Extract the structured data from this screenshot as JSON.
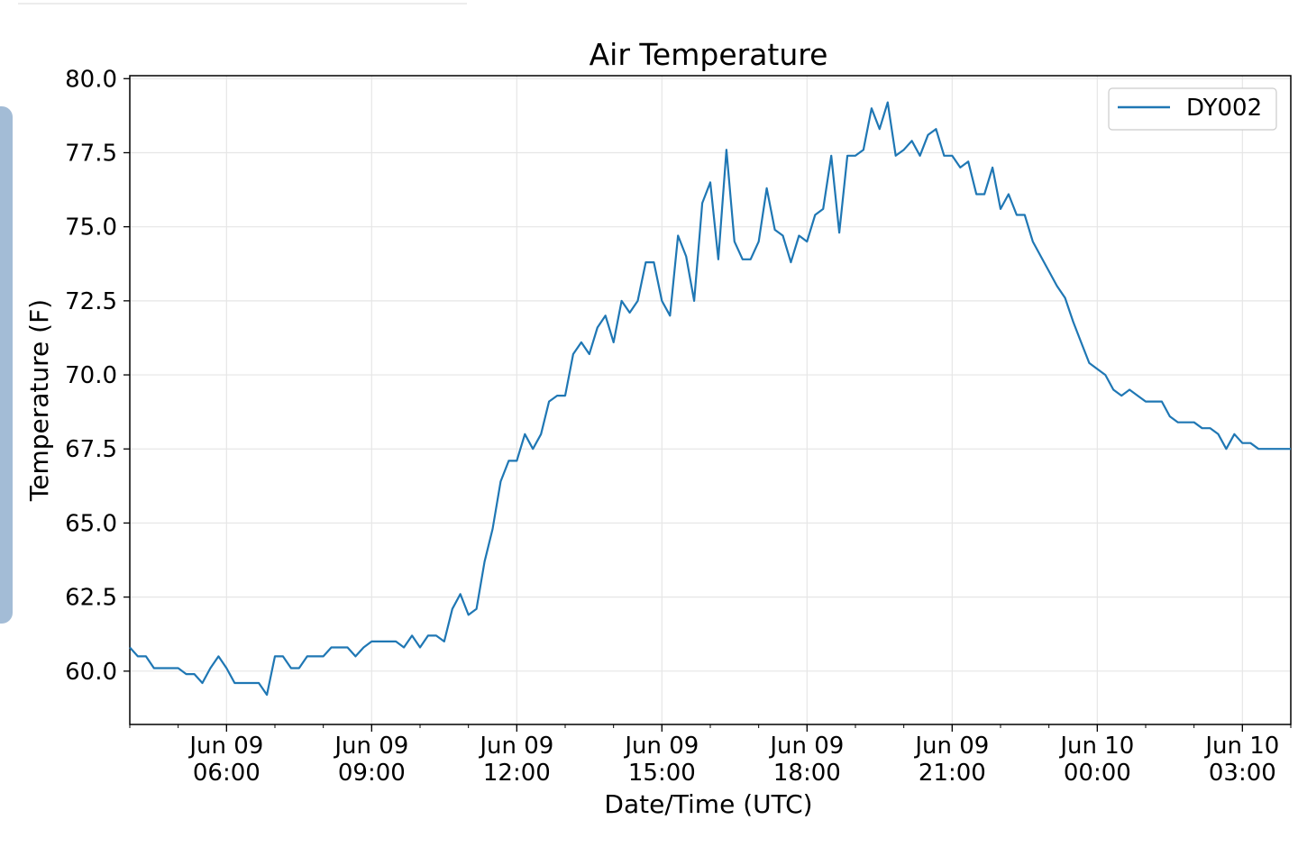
{
  "chart_data": {
    "type": "line",
    "title": "Air Temperature",
    "xlabel": "Date/Time (UTC)",
    "ylabel": "Temperature (F)",
    "ylim": [
      58.2,
      80.1
    ],
    "yticks": [
      60.0,
      62.5,
      65.0,
      67.5,
      70.0,
      72.5,
      75.0,
      77.5,
      80.0
    ],
    "ytick_labels": [
      "60.0",
      "62.5",
      "65.0",
      "67.5",
      "70.0",
      "72.5",
      "75.0",
      "77.5",
      "80.0"
    ],
    "xlim": [
      "2024-06-09 04:00",
      "2024-06-10 04:00"
    ],
    "xticks": [
      {
        "time": "2024-06-09 06:00",
        "line1": "Jun 09",
        "line2": "06:00"
      },
      {
        "time": "2024-06-09 09:00",
        "line1": "Jun 09",
        "line2": "09:00"
      },
      {
        "time": "2024-06-09 12:00",
        "line1": "Jun 09",
        "line2": "12:00"
      },
      {
        "time": "2024-06-09 15:00",
        "line1": "Jun 09",
        "line2": "15:00"
      },
      {
        "time": "2024-06-09 18:00",
        "line1": "Jun 09",
        "line2": "18:00"
      },
      {
        "time": "2024-06-09 21:00",
        "line1": "Jun 09",
        "line2": "21:00"
      },
      {
        "time": "2024-06-10 00:00",
        "line1": "Jun 10",
        "line2": "00:00"
      },
      {
        "time": "2024-06-10 03:00",
        "line1": "Jun 10",
        "line2": "03:00"
      }
    ],
    "grid": true,
    "legend": "top-right",
    "series": [
      {
        "name": "DY002",
        "color": "#1f77b4",
        "points": [
          [
            "2024-06-09 04:00",
            60.8
          ],
          [
            "2024-06-09 04:10",
            60.5
          ],
          [
            "2024-06-09 04:20",
            60.5
          ],
          [
            "2024-06-09 04:30",
            60.1
          ],
          [
            "2024-06-09 04:40",
            60.1
          ],
          [
            "2024-06-09 04:50",
            60.1
          ],
          [
            "2024-06-09 05:00",
            60.1
          ],
          [
            "2024-06-09 05:10",
            59.9
          ],
          [
            "2024-06-09 05:20",
            59.9
          ],
          [
            "2024-06-09 05:30",
            59.6
          ],
          [
            "2024-06-09 05:40",
            60.1
          ],
          [
            "2024-06-09 05:50",
            60.5
          ],
          [
            "2024-06-09 06:00",
            60.1
          ],
          [
            "2024-06-09 06:10",
            59.6
          ],
          [
            "2024-06-09 06:20",
            59.6
          ],
          [
            "2024-06-09 06:30",
            59.6
          ],
          [
            "2024-06-09 06:40",
            59.6
          ],
          [
            "2024-06-09 06:50",
            59.2
          ],
          [
            "2024-06-09 07:00",
            60.5
          ],
          [
            "2024-06-09 07:10",
            60.5
          ],
          [
            "2024-06-09 07:20",
            60.1
          ],
          [
            "2024-06-09 07:30",
            60.1
          ],
          [
            "2024-06-09 07:40",
            60.5
          ],
          [
            "2024-06-09 07:50",
            60.5
          ],
          [
            "2024-06-09 08:00",
            60.5
          ],
          [
            "2024-06-09 08:10",
            60.8
          ],
          [
            "2024-06-09 08:20",
            60.8
          ],
          [
            "2024-06-09 08:30",
            60.8
          ],
          [
            "2024-06-09 08:40",
            60.5
          ],
          [
            "2024-06-09 08:50",
            60.8
          ],
          [
            "2024-06-09 09:00",
            61.0
          ],
          [
            "2024-06-09 09:10",
            61.0
          ],
          [
            "2024-06-09 09:20",
            61.0
          ],
          [
            "2024-06-09 09:30",
            61.0
          ],
          [
            "2024-06-09 09:40",
            60.8
          ],
          [
            "2024-06-09 09:50",
            61.2
          ],
          [
            "2024-06-09 10:00",
            60.8
          ],
          [
            "2024-06-09 10:10",
            61.2
          ],
          [
            "2024-06-09 10:20",
            61.2
          ],
          [
            "2024-06-09 10:30",
            61.0
          ],
          [
            "2024-06-09 10:40",
            62.1
          ],
          [
            "2024-06-09 10:50",
            62.6
          ],
          [
            "2024-06-09 11:00",
            61.9
          ],
          [
            "2024-06-09 11:10",
            62.1
          ],
          [
            "2024-06-09 11:20",
            63.7
          ],
          [
            "2024-06-09 11:30",
            64.8
          ],
          [
            "2024-06-09 11:40",
            66.4
          ],
          [
            "2024-06-09 11:50",
            67.1
          ],
          [
            "2024-06-09 12:00",
            67.1
          ],
          [
            "2024-06-09 12:10",
            68.0
          ],
          [
            "2024-06-09 12:20",
            67.5
          ],
          [
            "2024-06-09 12:30",
            68.0
          ],
          [
            "2024-06-09 12:40",
            69.1
          ],
          [
            "2024-06-09 12:50",
            69.3
          ],
          [
            "2024-06-09 13:00",
            69.3
          ],
          [
            "2024-06-09 13:10",
            70.7
          ],
          [
            "2024-06-09 13:20",
            71.1
          ],
          [
            "2024-06-09 13:30",
            70.7
          ],
          [
            "2024-06-09 13:40",
            71.6
          ],
          [
            "2024-06-09 13:50",
            72.0
          ],
          [
            "2024-06-09 14:00",
            71.1
          ],
          [
            "2024-06-09 14:10",
            72.5
          ],
          [
            "2024-06-09 14:20",
            72.1
          ],
          [
            "2024-06-09 14:30",
            72.5
          ],
          [
            "2024-06-09 14:40",
            73.8
          ],
          [
            "2024-06-09 14:50",
            73.8
          ],
          [
            "2024-06-09 15:00",
            72.5
          ],
          [
            "2024-06-09 15:10",
            72.0
          ],
          [
            "2024-06-09 15:20",
            74.7
          ],
          [
            "2024-06-09 15:30",
            74.0
          ],
          [
            "2024-06-09 15:40",
            72.5
          ],
          [
            "2024-06-09 15:50",
            75.8
          ],
          [
            "2024-06-09 16:00",
            76.5
          ],
          [
            "2024-06-09 16:10",
            73.9
          ],
          [
            "2024-06-09 16:20",
            77.6
          ],
          [
            "2024-06-09 16:30",
            74.5
          ],
          [
            "2024-06-09 16:40",
            73.9
          ],
          [
            "2024-06-09 16:50",
            73.9
          ],
          [
            "2024-06-09 17:00",
            74.5
          ],
          [
            "2024-06-09 17:10",
            76.3
          ],
          [
            "2024-06-09 17:20",
            74.9
          ],
          [
            "2024-06-09 17:30",
            74.7
          ],
          [
            "2024-06-09 17:40",
            73.8
          ],
          [
            "2024-06-09 17:50",
            74.7
          ],
          [
            "2024-06-09 18:00",
            74.5
          ],
          [
            "2024-06-09 18:10",
            75.4
          ],
          [
            "2024-06-09 18:20",
            75.6
          ],
          [
            "2024-06-09 18:30",
            77.4
          ],
          [
            "2024-06-09 18:40",
            74.8
          ],
          [
            "2024-06-09 18:50",
            77.4
          ],
          [
            "2024-06-09 19:00",
            77.4
          ],
          [
            "2024-06-09 19:10",
            77.6
          ],
          [
            "2024-06-09 19:20",
            79.0
          ],
          [
            "2024-06-09 19:30",
            78.3
          ],
          [
            "2024-06-09 19:40",
            79.2
          ],
          [
            "2024-06-09 19:50",
            77.4
          ],
          [
            "2024-06-09 20:00",
            77.6
          ],
          [
            "2024-06-09 20:10",
            77.9
          ],
          [
            "2024-06-09 20:20",
            77.4
          ],
          [
            "2024-06-09 20:30",
            78.1
          ],
          [
            "2024-06-09 20:40",
            78.3
          ],
          [
            "2024-06-09 20:50",
            77.4
          ],
          [
            "2024-06-09 21:00",
            77.4
          ],
          [
            "2024-06-09 21:10",
            77.0
          ],
          [
            "2024-06-09 21:20",
            77.2
          ],
          [
            "2024-06-09 21:30",
            76.1
          ],
          [
            "2024-06-09 21:40",
            76.1
          ],
          [
            "2024-06-09 21:50",
            77.0
          ],
          [
            "2024-06-09 22:00",
            75.6
          ],
          [
            "2024-06-09 22:10",
            76.1
          ],
          [
            "2024-06-09 22:20",
            75.4
          ],
          [
            "2024-06-09 22:30",
            75.4
          ],
          [
            "2024-06-09 22:40",
            74.5
          ],
          [
            "2024-06-09 22:50",
            74.0
          ],
          [
            "2024-06-09 23:00",
            73.5
          ],
          [
            "2024-06-09 23:10",
            73.0
          ],
          [
            "2024-06-09 23:20",
            72.6
          ],
          [
            "2024-06-09 23:30",
            71.8
          ],
          [
            "2024-06-09 23:40",
            71.1
          ],
          [
            "2024-06-09 23:50",
            70.4
          ],
          [
            "2024-06-10 00:00",
            70.2
          ],
          [
            "2024-06-10 00:10",
            70.0
          ],
          [
            "2024-06-10 00:20",
            69.5
          ],
          [
            "2024-06-10 00:30",
            69.3
          ],
          [
            "2024-06-10 00:40",
            69.5
          ],
          [
            "2024-06-10 00:50",
            69.3
          ],
          [
            "2024-06-10 01:00",
            69.1
          ],
          [
            "2024-06-10 01:10",
            69.1
          ],
          [
            "2024-06-10 01:20",
            69.1
          ],
          [
            "2024-06-10 01:30",
            68.6
          ],
          [
            "2024-06-10 01:40",
            68.4
          ],
          [
            "2024-06-10 01:50",
            68.4
          ],
          [
            "2024-06-10 02:00",
            68.4
          ],
          [
            "2024-06-10 02:10",
            68.2
          ],
          [
            "2024-06-10 02:20",
            68.2
          ],
          [
            "2024-06-10 02:30",
            68.0
          ],
          [
            "2024-06-10 02:40",
            67.5
          ],
          [
            "2024-06-10 02:50",
            68.0
          ],
          [
            "2024-06-10 03:00",
            67.7
          ],
          [
            "2024-06-10 03:10",
            67.7
          ],
          [
            "2024-06-10 03:20",
            67.5
          ],
          [
            "2024-06-10 03:30",
            67.5
          ],
          [
            "2024-06-10 03:40",
            67.5
          ],
          [
            "2024-06-10 03:50",
            67.5
          ],
          [
            "2024-06-10 04:00",
            67.5
          ]
        ]
      }
    ]
  }
}
